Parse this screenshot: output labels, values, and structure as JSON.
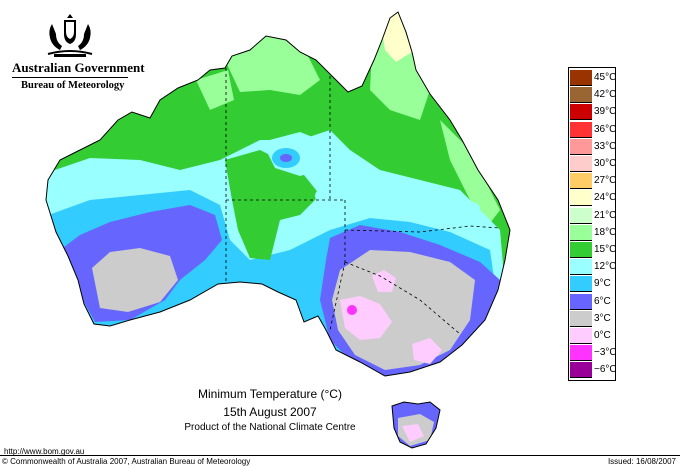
{
  "header": {
    "government": "Australian Government",
    "bureau": "Bureau of Meteorology",
    "crest": "commonwealth-coat-of-arms"
  },
  "map": {
    "title": "Minimum Temperature (°C)",
    "date": "15th August 2007",
    "product": "Product of the National Climate Centre"
  },
  "legend": [
    {
      "label": "45°C",
      "color": "#993300"
    },
    {
      "label": "42°C",
      "color": "#996633"
    },
    {
      "label": "39°C",
      "color": "#cc0000"
    },
    {
      "label": "36°C",
      "color": "#ff3333"
    },
    {
      "label": "33°C",
      "color": "#ff9999"
    },
    {
      "label": "30°C",
      "color": "#ffcccc"
    },
    {
      "label": "27°C",
      "color": "#ffcc66"
    },
    {
      "label": "24°C",
      "color": "#ffffcc"
    },
    {
      "label": "21°C",
      "color": "#ccffcc"
    },
    {
      "label": "18°C",
      "color": "#99ff99"
    },
    {
      "label": "15°C",
      "color": "#33cc33"
    },
    {
      "label": "12°C",
      "color": "#99ffff"
    },
    {
      "label": "9°C",
      "color": "#33ccff"
    },
    {
      "label": "6°C",
      "color": "#6666ff"
    },
    {
      "label": "3°C",
      "color": "#cccccc"
    },
    {
      "label": "0°C",
      "color": "#ffccff"
    },
    {
      "label": "−3°C",
      "color": "#ff33ff"
    },
    {
      "label": "−6°C",
      "color": "#990099"
    }
  ],
  "footer": {
    "url": "http://www.bom.gov.au",
    "copyright": "© Commonwealth of Australia 2007, Australian Bureau of Meteorology",
    "issued": "Issued: 16/08/2007"
  }
}
